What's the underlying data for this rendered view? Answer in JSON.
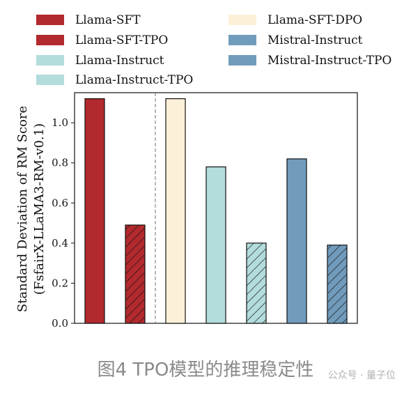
{
  "chart_data": {
    "type": "bar",
    "ylabel_line1": "Standard Deviation of RM Score",
    "ylabel_line2": "(FsfairX-LLaMA3-RM-v0.1)",
    "ylim": [
      0.0,
      1.15
    ],
    "yticks": [
      "0.0",
      "0.2",
      "0.4",
      "0.6",
      "0.8",
      "1.0"
    ],
    "ytick_values": [
      0.0,
      0.2,
      0.4,
      0.6,
      0.8,
      1.0
    ],
    "legend_placement": "top",
    "series": [
      {
        "name": "Llama-SFT",
        "value": 1.12,
        "color": "#b2292e",
        "hatched": false
      },
      {
        "name": "Llama-SFT-TPO",
        "value": 0.49,
        "color": "#b2292e",
        "hatched": true
      },
      {
        "name": "Llama-SFT-DPO",
        "value": 1.12,
        "color": "#fdf0d8",
        "hatched": false
      },
      {
        "name": "Llama-Instruct",
        "value": 0.78,
        "color": "#b3dcdc",
        "hatched": false
      },
      {
        "name": "Llama-Instruct-TPO",
        "value": 0.4,
        "color": "#b3dcdc",
        "hatched": true
      },
      {
        "name": "Mistral-Instruct",
        "value": 0.82,
        "color": "#719bbb",
        "hatched": false
      },
      {
        "name": "Mistral-Instruct-TPO",
        "value": 0.39,
        "color": "#719bbb",
        "hatched": true
      }
    ],
    "legend_order": [
      0,
      1,
      3,
      4,
      2,
      5,
      6
    ],
    "divider_after_index": 1
  },
  "caption": "图4  TPO模型的推理稳定性",
  "watermark": "公众号 · 量子位"
}
